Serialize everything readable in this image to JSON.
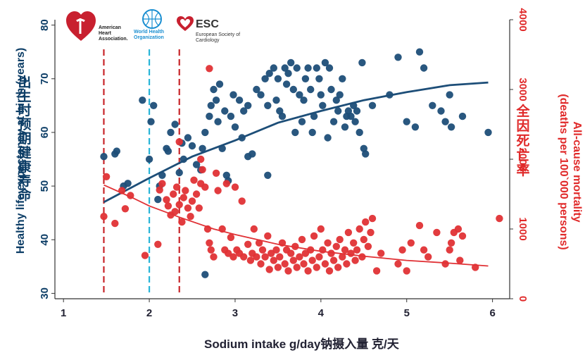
{
  "chart_data": {
    "type": "scatter",
    "xlabel": "Sodium intake g/day钠摄入量 克/天",
    "ylabel_left": "Healthy life expectancy at birth (years)",
    "ylabel_left_zh": "出生时预期健康寿命",
    "ylabel_right_line1": "All-cause mortality",
    "ylabel_right_line2": "(deaths per 100`000 persons)",
    "ylabel_right_zh": "全因死亡率",
    "x_ticks": [
      "1",
      "2",
      "3",
      "4",
      "5",
      "6"
    ],
    "y_left_ticks": [
      "30",
      "40",
      "50",
      "60",
      "70",
      "80"
    ],
    "y_right_ticks": [
      "0",
      "1000",
      "2000",
      "3000",
      "4000"
    ],
    "xlim": [
      0.9,
      6.2
    ],
    "ylim_left": [
      29,
      81
    ],
    "ylim_right": [
      0,
      4000
    ],
    "vlines": [
      {
        "x": 1.47,
        "color": "#c8262a"
      },
      {
        "x": 2.0,
        "color": "#27b5d8"
      },
      {
        "x": 2.35,
        "color": "#c8262a"
      }
    ],
    "series": [
      {
        "name": "Healthy life expectancy",
        "color": "#1d4e78",
        "axis": "left",
        "fit": [
          [
            1.47,
            47
          ],
          [
            2,
            51.5
          ],
          [
            2.5,
            55.5
          ],
          [
            3,
            58.5
          ],
          [
            3.5,
            61.8
          ],
          [
            4,
            64
          ],
          [
            4.5,
            66
          ],
          [
            5,
            67.5
          ],
          [
            5.5,
            68.8
          ],
          [
            5.95,
            69.3
          ]
        ],
        "points": [
          [
            1.47,
            55.5
          ],
          [
            1.6,
            56
          ],
          [
            1.7,
            50
          ],
          [
            1.75,
            50.5
          ],
          [
            1.92,
            66
          ],
          [
            2,
            55
          ],
          [
            2.02,
            62
          ],
          [
            2.05,
            65
          ],
          [
            2.1,
            47.5
          ],
          [
            2.12,
            50
          ],
          [
            2.15,
            52
          ],
          [
            2.2,
            57
          ],
          [
            2.22,
            56.5
          ],
          [
            2.25,
            60
          ],
          [
            2.3,
            61.5
          ],
          [
            2.35,
            52.5
          ],
          [
            2.38,
            58
          ],
          [
            2.4,
            55
          ],
          [
            2.45,
            59
          ],
          [
            2.5,
            57.5
          ],
          [
            2.55,
            54
          ],
          [
            2.6,
            53
          ],
          [
            2.62,
            57
          ],
          [
            2.65,
            60
          ],
          [
            2.7,
            63
          ],
          [
            2.72,
            65
          ],
          [
            2.75,
            68
          ],
          [
            2.78,
            66
          ],
          [
            2.8,
            62
          ],
          [
            2.82,
            69
          ],
          [
            2.85,
            57
          ],
          [
            2.88,
            64
          ],
          [
            2.9,
            52
          ],
          [
            2.92,
            51
          ],
          [
            2.95,
            63
          ],
          [
            2.98,
            67
          ],
          [
            3,
            61
          ],
          [
            3.05,
            66
          ],
          [
            3.08,
            59
          ],
          [
            3.1,
            64
          ],
          [
            3.15,
            65
          ],
          [
            3.2,
            56
          ],
          [
            3.25,
            68
          ],
          [
            3.3,
            67
          ],
          [
            3.35,
            70
          ],
          [
            3.38,
            65
          ],
          [
            3.4,
            71
          ],
          [
            3.45,
            72
          ],
          [
            3.48,
            66
          ],
          [
            3.5,
            70
          ],
          [
            3.52,
            64
          ],
          [
            3.55,
            63
          ],
          [
            3.58,
            72
          ],
          [
            3.6,
            69
          ],
          [
            3.62,
            71
          ],
          [
            3.65,
            73
          ],
          [
            3.68,
            68
          ],
          [
            3.7,
            60
          ],
          [
            3.72,
            72
          ],
          [
            3.75,
            67
          ],
          [
            3.78,
            62
          ],
          [
            3.8,
            66
          ],
          [
            3.82,
            70
          ],
          [
            3.85,
            72
          ],
          [
            3.88,
            68
          ],
          [
            3.9,
            60
          ],
          [
            3.92,
            63
          ],
          [
            3.95,
            72
          ],
          [
            3.98,
            70
          ],
          [
            4,
            67
          ],
          [
            4.02,
            65
          ],
          [
            4.05,
            73
          ],
          [
            4.08,
            59
          ],
          [
            4.1,
            72
          ],
          [
            4.12,
            68
          ],
          [
            4.15,
            62
          ],
          [
            4.18,
            66
          ],
          [
            4.2,
            64
          ],
          [
            4.22,
            67
          ],
          [
            4.25,
            70
          ],
          [
            4.28,
            61
          ],
          [
            4.3,
            63
          ],
          [
            4.32,
            64
          ],
          [
            4.35,
            63
          ],
          [
            4.38,
            65
          ],
          [
            4.4,
            62
          ],
          [
            4.42,
            64
          ],
          [
            4.45,
            60
          ],
          [
            4.48,
            73
          ],
          [
            4.5,
            57
          ],
          [
            4.52,
            56
          ],
          [
            4.6,
            65
          ],
          [
            4.8,
            67
          ],
          [
            4.9,
            74
          ],
          [
            5.0,
            62
          ],
          [
            5.1,
            61
          ],
          [
            5.15,
            75
          ],
          [
            5.2,
            72
          ],
          [
            5.3,
            65
          ],
          [
            5.4,
            64
          ],
          [
            5.45,
            62
          ],
          [
            5.5,
            67
          ],
          [
            5.52,
            61
          ],
          [
            5.65,
            63
          ],
          [
            5.95,
            60
          ],
          [
            2.65,
            33.5
          ],
          [
            1.62,
            56.5
          ],
          [
            3.15,
            55.5
          ],
          [
            3.38,
            52
          ]
        ]
      },
      {
        "name": "All-cause mortality",
        "color": "#e03135",
        "axis": "right",
        "fit": [
          [
            1.47,
            1630
          ],
          [
            1.8,
            1450
          ],
          [
            2,
            1330
          ],
          [
            2.35,
            1170
          ],
          [
            2.75,
            1000
          ],
          [
            3,
            920
          ],
          [
            3.5,
            780
          ],
          [
            4,
            680
          ],
          [
            4.5,
            610
          ],
          [
            5,
            550
          ],
          [
            5.5,
            510
          ],
          [
            5.95,
            470
          ]
        ],
        "points": [
          [
            1.47,
            1180
          ],
          [
            1.6,
            1080
          ],
          [
            1.68,
            1550
          ],
          [
            1.72,
            1290
          ],
          [
            1.78,
            1480
          ],
          [
            1.95,
            620
          ],
          [
            2.1,
            780
          ],
          [
            2.12,
            1560
          ],
          [
            2.15,
            1650
          ],
          [
            2.2,
            1420
          ],
          [
            2.22,
            1330
          ],
          [
            2.25,
            1200
          ],
          [
            2.28,
            1500
          ],
          [
            2.3,
            1250
          ],
          [
            2.32,
            1600
          ],
          [
            2.35,
            1350
          ],
          [
            2.38,
            1100
          ],
          [
            2.4,
            1450
          ],
          [
            2.42,
            1550
          ],
          [
            2.45,
            1300
          ],
          [
            2.48,
            1180
          ],
          [
            2.5,
            1400
          ],
          [
            2.52,
            1700
          ],
          [
            2.55,
            1500
          ],
          [
            2.58,
            1300
          ],
          [
            2.6,
            1650
          ],
          [
            2.62,
            1850
          ],
          [
            2.65,
            1600
          ],
          [
            2.68,
            1000
          ],
          [
            2.7,
            800
          ],
          [
            2.72,
            700
          ],
          [
            2.75,
            600
          ],
          [
            2.78,
            1800
          ],
          [
            2.8,
            1550
          ],
          [
            2.85,
            1000
          ],
          [
            2.88,
            700
          ],
          [
            2.9,
            1650
          ],
          [
            2.92,
            650
          ],
          [
            2.95,
            880
          ],
          [
            2.98,
            600
          ],
          [
            3,
            1600
          ],
          [
            3.02,
            700
          ],
          [
            3.05,
            650
          ],
          [
            3.08,
            1400
          ],
          [
            3.1,
            600
          ],
          [
            3.15,
            780
          ],
          [
            3.18,
            550
          ],
          [
            3.2,
            650
          ],
          [
            3.22,
            1000
          ],
          [
            3.25,
            600
          ],
          [
            3.28,
            800
          ],
          [
            3.3,
            500
          ],
          [
            3.32,
            700
          ],
          [
            3.35,
            600
          ],
          [
            3.38,
            900
          ],
          [
            3.4,
            420
          ],
          [
            3.42,
            650
          ],
          [
            3.45,
            550
          ],
          [
            3.48,
            700
          ],
          [
            3.5,
            450
          ],
          [
            3.52,
            600
          ],
          [
            3.55,
            800
          ],
          [
            3.58,
            500
          ],
          [
            3.6,
            700
          ],
          [
            3.62,
            400
          ],
          [
            3.65,
            650
          ],
          [
            3.68,
            550
          ],
          [
            3.7,
            750
          ],
          [
            3.72,
            450
          ],
          [
            3.75,
            600
          ],
          [
            3.78,
            850
          ],
          [
            3.8,
            500
          ],
          [
            3.82,
            650
          ],
          [
            3.85,
            400
          ],
          [
            3.88,
            700
          ],
          [
            3.9,
            550
          ],
          [
            3.92,
            900
          ],
          [
            3.95,
            450
          ],
          [
            3.98,
            600
          ],
          [
            4,
            1000
          ],
          [
            4.02,
            700
          ],
          [
            4.05,
            500
          ],
          [
            4.08,
            800
          ],
          [
            4.1,
            400
          ],
          [
            4.12,
            650
          ],
          [
            4.15,
            550
          ],
          [
            4.18,
            750
          ],
          [
            4.2,
            450
          ],
          [
            4.22,
            850
          ],
          [
            4.25,
            600
          ],
          [
            4.28,
            700
          ],
          [
            4.3,
            500
          ],
          [
            4.32,
            950
          ],
          [
            4.35,
            650
          ],
          [
            4.38,
            800
          ],
          [
            4.4,
            550
          ],
          [
            4.42,
            700
          ],
          [
            4.45,
            1000
          ],
          [
            4.48,
            600
          ],
          [
            4.5,
            850
          ],
          [
            4.52,
            1100
          ],
          [
            4.55,
            750
          ],
          [
            4.58,
            950
          ],
          [
            4.6,
            1150
          ],
          [
            4.65,
            400
          ],
          [
            4.7,
            650
          ],
          [
            4.9,
            500
          ],
          [
            4.95,
            700
          ],
          [
            5,
            400
          ],
          [
            5.05,
            800
          ],
          [
            5.15,
            1050
          ],
          [
            5.2,
            700
          ],
          [
            5.25,
            600
          ],
          [
            5.35,
            950
          ],
          [
            5.45,
            500
          ],
          [
            5.5,
            700
          ],
          [
            5.52,
            800
          ],
          [
            5.55,
            950
          ],
          [
            5.6,
            1000
          ],
          [
            5.62,
            550
          ],
          [
            5.65,
            900
          ],
          [
            5.8,
            450
          ],
          [
            6.08,
            1150
          ],
          [
            2.7,
            3300
          ],
          [
            1.5,
            1750
          ],
          [
            2.35,
            2250
          ],
          [
            2.6,
            2000
          ]
        ]
      }
    ]
  },
  "logos": {
    "aha_text": "American Heart Association.",
    "who_text": "World Health Organization",
    "esc_title": "ESC",
    "esc_subtitle": "European Society of Cardiology"
  },
  "colors": {
    "navy": "#1d4e78",
    "red": "#e03135",
    "cyan": "#27b5d8"
  }
}
